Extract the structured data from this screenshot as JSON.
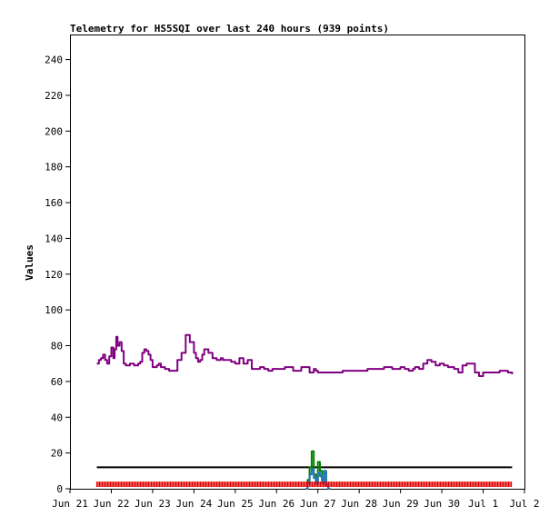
{
  "chart_data": {
    "type": "line",
    "title": "Telemetry for HS5SQI over last 240 hours (939 points)",
    "xlabel": "",
    "ylabel": "Values",
    "x_unit": "days",
    "xlim": [
      0,
      11
    ],
    "ylim": [
      0,
      254
    ],
    "grid": false,
    "legend": "none",
    "x_ticks": [
      {
        "x": 0,
        "label": "Jun 21"
      },
      {
        "x": 1,
        "label": "Jun 22"
      },
      {
        "x": 2,
        "label": "Jun 23"
      },
      {
        "x": 3,
        "label": "Jun 24"
      },
      {
        "x": 4,
        "label": "Jun 25"
      },
      {
        "x": 5,
        "label": "Jun 26"
      },
      {
        "x": 6,
        "label": "Jun 27"
      },
      {
        "x": 7,
        "label": "Jun 28"
      },
      {
        "x": 8,
        "label": "Jun 29"
      },
      {
        "x": 9,
        "label": "Jun 30"
      },
      {
        "x": 10,
        "label": "Jul 1"
      },
      {
        "x": 11,
        "label": "Jul 2"
      }
    ],
    "y_ticks": [
      0,
      20,
      40,
      60,
      80,
      100,
      120,
      140,
      160,
      180,
      200,
      220,
      240
    ],
    "series": [
      {
        "color": "#800080",
        "style": "line",
        "x": [
          0.65,
          0.7,
          0.75,
          0.8,
          0.85,
          0.9,
          0.95,
          1.0,
          1.05,
          1.08,
          1.12,
          1.15,
          1.2,
          1.25,
          1.3,
          1.35,
          1.45,
          1.55,
          1.65,
          1.7,
          1.75,
          1.8,
          1.85,
          1.9,
          1.95,
          2.0,
          2.05,
          2.1,
          2.15,
          2.2,
          2.3,
          2.4,
          2.5,
          2.6,
          2.7,
          2.8,
          2.9,
          3.0,
          3.05,
          3.1,
          3.15,
          3.2,
          3.25,
          3.3,
          3.35,
          3.45,
          3.55,
          3.65,
          3.7,
          3.8,
          3.9,
          4.0,
          4.1,
          4.2,
          4.3,
          4.4,
          4.5,
          4.6,
          4.7,
          4.8,
          4.9,
          5.0,
          5.2,
          5.4,
          5.6,
          5.8,
          5.9,
          5.95,
          6.0,
          6.2,
          6.4,
          6.6,
          6.8,
          7.0,
          7.2,
          7.4,
          7.6,
          7.8,
          8.0,
          8.1,
          8.2,
          8.3,
          8.35,
          8.45,
          8.55,
          8.65,
          8.75,
          8.85,
          8.95,
          9.05,
          9.15,
          9.2,
          9.3,
          9.4,
          9.5,
          9.6,
          9.7,
          9.8,
          9.9,
          10.0,
          10.2,
          10.4,
          10.6,
          10.7
        ],
        "y": [
          70,
          72,
          73,
          75,
          72,
          70,
          74,
          79,
          73,
          78,
          85,
          80,
          82,
          77,
          70,
          69,
          70,
          69,
          70,
          71,
          76,
          78,
          77,
          75,
          72,
          68,
          68,
          69,
          70,
          68,
          67,
          66,
          66,
          72,
          76,
          86,
          82,
          76,
          73,
          71,
          72,
          75,
          78,
          78,
          76,
          73,
          72,
          73,
          72,
          72,
          71,
          70,
          73,
          70,
          72,
          67,
          67,
          68,
          67,
          66,
          67,
          67,
          68,
          66,
          68,
          65,
          67,
          66,
          65,
          65,
          65,
          66,
          66,
          66,
          67,
          67,
          68,
          67,
          68,
          67,
          66,
          67,
          68,
          67,
          70,
          72,
          71,
          69,
          70,
          69,
          68,
          68,
          67,
          65,
          69,
          70,
          70,
          65,
          63,
          65,
          65,
          66,
          65,
          64
        ]
      },
      {
        "color": "#000000",
        "style": "line",
        "x": [
          0.65,
          10.7
        ],
        "y": [
          12,
          12
        ]
      },
      {
        "color": "#008000",
        "style": "line",
        "x": [
          5.7,
          5.75,
          5.8,
          5.85,
          5.9,
          5.95,
          6.0,
          6.05,
          6.1,
          6.15,
          6.2,
          6.25,
          6.3
        ],
        "y": [
          0,
          5,
          12,
          21,
          8,
          3,
          15,
          10,
          5,
          9,
          2,
          0,
          0
        ]
      },
      {
        "color": "#1e72b8",
        "style": "line",
        "x": [
          5.7,
          5.75,
          5.8,
          5.85,
          5.9,
          5.95,
          6.0,
          6.05,
          6.1,
          6.15,
          6.2,
          6.25,
          6.3
        ],
        "y": [
          0,
          3,
          8,
          11,
          6,
          3,
          9,
          7,
          3,
          10,
          2,
          0,
          0
        ]
      },
      {
        "color": "#e00000",
        "style": "dense",
        "x": [
          0.65,
          10.7
        ],
        "y": [
          1,
          4
        ]
      }
    ]
  }
}
